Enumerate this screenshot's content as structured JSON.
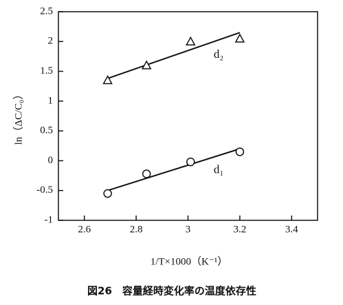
{
  "chart_data": {
    "type": "scatter",
    "x_label": "1/T×1000（K⁻¹）",
    "y_label": "ln（ΔC/C₀）",
    "caption": "図26　容量経時変化率の温度依存性",
    "xlim": [
      2.5,
      3.5
    ],
    "xticks": [
      2.6,
      2.8,
      3,
      3.2,
      3.4
    ],
    "ylim": [
      -1,
      2.5
    ],
    "yticks": [
      2.5,
      2,
      1.5,
      1,
      0.5,
      0,
      -0.5,
      -1
    ],
    "series": [
      {
        "name": "d₂",
        "marker": "triangle",
        "color": "#111111",
        "x": [
          2.69,
          2.84,
          3.01,
          3.2
        ],
        "values": [
          1.35,
          1.6,
          2.0,
          2.05
        ],
        "fit": {
          "x": [
            2.69,
            3.2
          ],
          "values": [
            1.38,
            2.15
          ]
        }
      },
      {
        "name": "d₁",
        "marker": "circle",
        "color": "#111111",
        "x": [
          2.69,
          2.84,
          3.01,
          3.2
        ],
        "values": [
          -0.55,
          -0.22,
          -0.02,
          0.15
        ],
        "fit": {
          "x": [
            2.69,
            3.2
          ],
          "values": [
            -0.5,
            0.2
          ]
        }
      }
    ]
  }
}
